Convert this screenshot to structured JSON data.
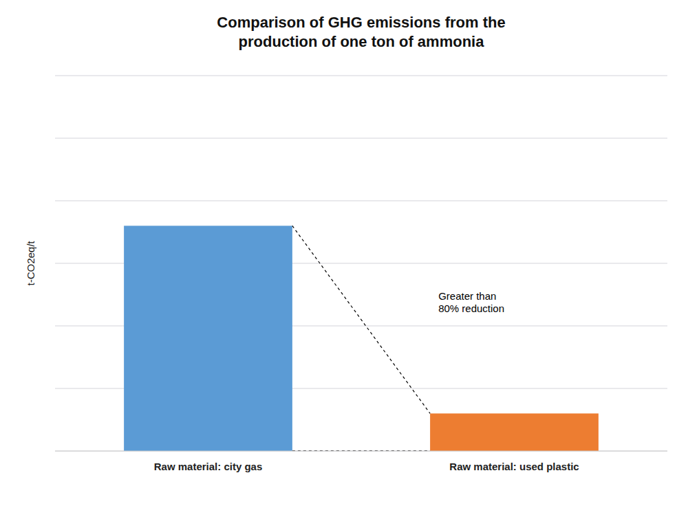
{
  "chart_data": {
    "type": "bar",
    "title": "Comparison of GHG emissions from the\nproduction of one ton of ammonia",
    "y_label": "t-CO2eq/t",
    "categories": [
      "Raw material: city gas",
      "Raw material: used plastic"
    ],
    "values": [
      6.0,
      1.0
    ],
    "colors": [
      "#5B9BD5",
      "#ED7D31"
    ],
    "annotation": "Greater than\n80% reduction",
    "ylim": [
      0,
      10
    ],
    "yticks": [
      0,
      1.6666666666666667,
      3.3333333333333335,
      5,
      6.666666666666667,
      8.333333333333334,
      10
    ],
    "grid": true,
    "tick_labels": "x"
  }
}
